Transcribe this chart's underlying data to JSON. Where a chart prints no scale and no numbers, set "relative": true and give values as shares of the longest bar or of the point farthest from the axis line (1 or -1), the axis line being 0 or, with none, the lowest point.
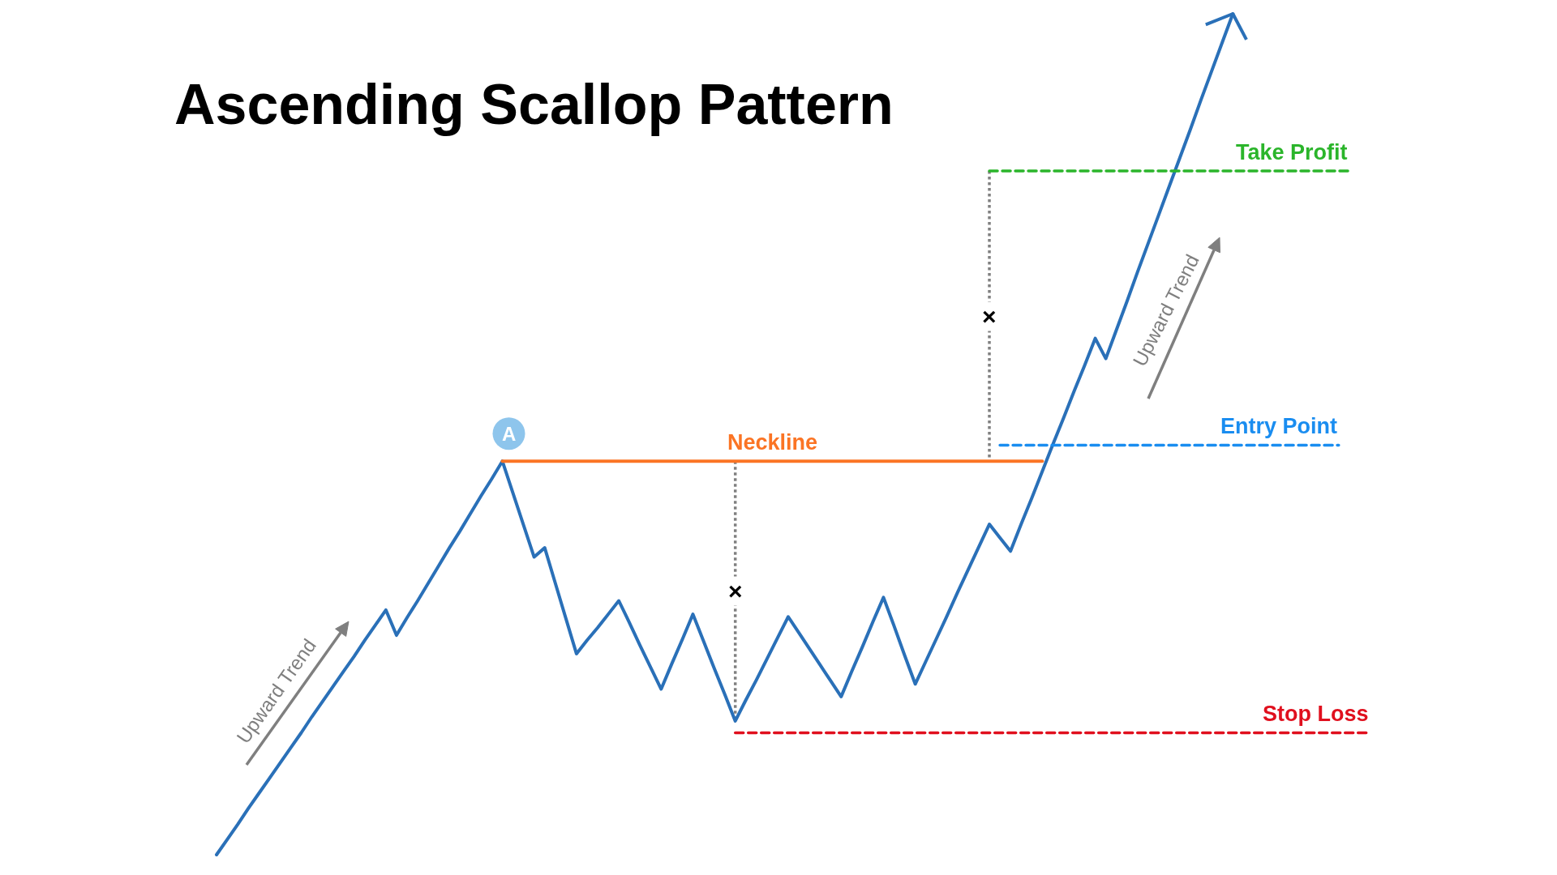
{
  "chart_data": {
    "type": "line",
    "title": "Ascending Scallop Pattern",
    "relative": true,
    "categories": [
      null,
      null,
      null,
      null,
      null,
      null,
      null,
      null,
      null,
      null,
      null,
      null,
      null,
      null,
      null,
      null,
      null,
      null,
      null,
      null,
      null,
      null,
      null,
      null,
      null,
      null,
      null,
      null,
      null,
      null,
      null,
      null,
      null,
      null,
      null,
      null,
      null,
      null,
      null,
      null,
      null,
      null,
      null,
      null,
      null,
      null,
      null,
      null,
      null,
      null,
      null,
      null,
      null,
      null,
      null,
      null,
      null,
      null,
      null,
      null,
      null,
      null,
      null,
      null,
      null,
      null,
      null,
      null,
      null,
      null,
      null,
      null,
      null,
      null,
      null,
      null,
      null,
      null,
      null,
      null,
      null,
      null,
      null,
      null,
      null,
      null,
      null,
      null,
      null,
      null,
      null,
      null,
      null,
      null,
      null,
      null,
      null,
      null,
      null,
      null,
      null,
      null,
      null,
      null,
      null,
      null,
      null,
      null,
      null,
      null
    ],
    "series": [
      {
        "color": "#2a70b8",
        "line_style": "solid",
        "values": [
          0,
          0.018,
          0.036,
          0.055,
          0.073,
          0.091,
          0.109,
          0.127,
          0.145,
          0.164,
          0.182,
          0.2,
          0.218,
          0.236,
          0.255,
          0.273,
          0.291,
          0.261,
          0.282,
          0.302,
          0.323,
          0.344,
          0.365,
          0.385,
          0.406,
          0.427,
          0.447,
          0.468,
          0.43,
          0.392,
          0.354,
          0.365,
          0.323,
          0.281,
          0.239,
          0.255,
          0.27,
          0.286,
          0.302,
          0.276,
          0.249,
          0.223,
          0.197,
          0.227,
          0.256,
          0.286,
          0.254,
          0.222,
          0.191,
          0.159,
          0.184,
          0.208,
          0.233,
          0.258,
          0.283,
          0.264,
          0.245,
          0.226,
          0.207,
          0.188,
          0.218,
          0.247,
          0.277,
          0.306,
          0.272,
          0.237,
          0.203,
          0.23,
          0.257,
          0.284,
          0.312,
          0.339,
          0.366,
          0.393,
          0.377,
          0.361,
          0.393,
          0.424,
          0.456,
          0.488,
          0.519,
          0.551,
          0.582,
          0.614,
          0.59,
          0.624,
          0.658,
          0.693,
          0.727,
          0.761,
          0.795,
          0.829,
          0.863,
          0.898,
          0.932,
          0.966,
          1.0,
          null,
          null,
          null,
          null,
          null,
          null,
          null,
          null,
          null,
          null,
          null,
          null,
          null
        ]
      },
      {
        "name": "Neckline",
        "color": "#fb7424",
        "line_style": "solid",
        "values": [
          null,
          null,
          null,
          null,
          null,
          null,
          null,
          null,
          null,
          null,
          null,
          null,
          null,
          null,
          null,
          null,
          null,
          null,
          null,
          null,
          null,
          null,
          null,
          null,
          null,
          null,
          null,
          0.468,
          0.468,
          0.468,
          0.468,
          0.468,
          0.468,
          0.468,
          0.468,
          0.468,
          0.468,
          0.468,
          0.468,
          0.468,
          0.468,
          0.468,
          0.468,
          0.468,
          0.468,
          0.468,
          0.468,
          0.468,
          0.468,
          0.468,
          0.468,
          0.468,
          0.468,
          0.468,
          0.468,
          0.468,
          0.468,
          0.468,
          0.468,
          0.468,
          0.468,
          0.468,
          0.468,
          0.468,
          0.468,
          0.468,
          0.468,
          0.468,
          0.468,
          0.468,
          0.468,
          0.468,
          0.468,
          0.468,
          0.468,
          0.468,
          0.468,
          0.468,
          0.468,
          null,
          null,
          null,
          null,
          null,
          null,
          null,
          null,
          null,
          null,
          null,
          null,
          null,
          null,
          null,
          null,
          null,
          null,
          null,
          null,
          null,
          null,
          null,
          null,
          null,
          null,
          null,
          null,
          null,
          null,
          null
        ]
      },
      {
        "name": "Take Profit",
        "color": "#2bb52b",
        "line_style": "dashed",
        "values": [
          null,
          null,
          null,
          null,
          null,
          null,
          null,
          null,
          null,
          null,
          null,
          null,
          null,
          null,
          null,
          null,
          null,
          null,
          null,
          null,
          null,
          null,
          null,
          null,
          null,
          null,
          null,
          null,
          null,
          null,
          null,
          null,
          null,
          null,
          null,
          null,
          null,
          null,
          null,
          null,
          null,
          null,
          null,
          null,
          null,
          null,
          null,
          null,
          null,
          null,
          null,
          null,
          null,
          null,
          null,
          null,
          null,
          null,
          null,
          null,
          null,
          null,
          null,
          null,
          null,
          null,
          null,
          null,
          null,
          null,
          null,
          null,
          null,
          0.813,
          0.813,
          0.813,
          0.813,
          0.813,
          0.813,
          0.813,
          0.813,
          0.813,
          0.813,
          0.813,
          0.813,
          0.813,
          0.813,
          0.813,
          0.813,
          0.813,
          0.813,
          0.813,
          0.813,
          0.813,
          0.813,
          0.813,
          0.813,
          0.813,
          0.813,
          0.813,
          0.813,
          0.813,
          0.813,
          0.813,
          0.813,
          0.813,
          0.813,
          0.813,
          null,
          null
        ]
      },
      {
        "name": "Entry Point",
        "color": "#1a8df0",
        "line_style": "dashed",
        "values": [
          null,
          null,
          null,
          null,
          null,
          null,
          null,
          null,
          null,
          null,
          null,
          null,
          null,
          null,
          null,
          null,
          null,
          null,
          null,
          null,
          null,
          null,
          null,
          null,
          null,
          null,
          null,
          null,
          null,
          null,
          null,
          null,
          null,
          null,
          null,
          null,
          null,
          null,
          null,
          null,
          null,
          null,
          null,
          null,
          null,
          null,
          null,
          null,
          null,
          null,
          null,
          null,
          null,
          null,
          null,
          null,
          null,
          null,
          null,
          null,
          null,
          null,
          null,
          null,
          null,
          null,
          null,
          null,
          null,
          null,
          null,
          null,
          null,
          null,
          0.487,
          0.487,
          0.487,
          0.487,
          0.487,
          0.487,
          0.487,
          0.487,
          0.487,
          0.487,
          0.487,
          0.487,
          0.487,
          0.487,
          0.487,
          0.487,
          0.487,
          0.487,
          0.487,
          0.487,
          0.487,
          0.487,
          0.487,
          0.487,
          0.487,
          0.487,
          0.487,
          0.487,
          0.487,
          0.487,
          0.487,
          0.487,
          0.487,
          null,
          null,
          null
        ]
      },
      {
        "name": "Stop Loss",
        "color": "#e0101e",
        "line_style": "dashed",
        "values": [
          null,
          null,
          null,
          null,
          null,
          null,
          null,
          null,
          null,
          null,
          null,
          null,
          null,
          null,
          null,
          null,
          null,
          null,
          null,
          null,
          null,
          null,
          null,
          null,
          null,
          null,
          null,
          null,
          null,
          null,
          null,
          null,
          null,
          null,
          null,
          null,
          null,
          null,
          null,
          null,
          null,
          null,
          null,
          null,
          null,
          null,
          null,
          null,
          null,
          0.145,
          0.145,
          0.145,
          0.145,
          0.145,
          0.145,
          0.145,
          0.145,
          0.145,
          0.145,
          0.145,
          0.145,
          0.145,
          0.145,
          0.145,
          0.145,
          0.145,
          0.145,
          0.145,
          0.145,
          0.145,
          0.145,
          0.145,
          0.145,
          0.145,
          0.145,
          0.145,
          0.145,
          0.145,
          0.145,
          0.145,
          0.145,
          0.145,
          0.145,
          0.145,
          0.145,
          0.145,
          0.145,
          0.145,
          0.145,
          0.145,
          0.145,
          0.145,
          0.145,
          0.145,
          0.145,
          0.145,
          0.145,
          0.145,
          0.145,
          0.145,
          0.145,
          0.145,
          0.145,
          0.145,
          0.145,
          0.145,
          0.145,
          0.145,
          0.145,
          0.145
        ]
      }
    ],
    "annotations": [
      "A",
      "Upward Trend",
      "Upward Trend",
      "×",
      "×"
    ]
  }
}
